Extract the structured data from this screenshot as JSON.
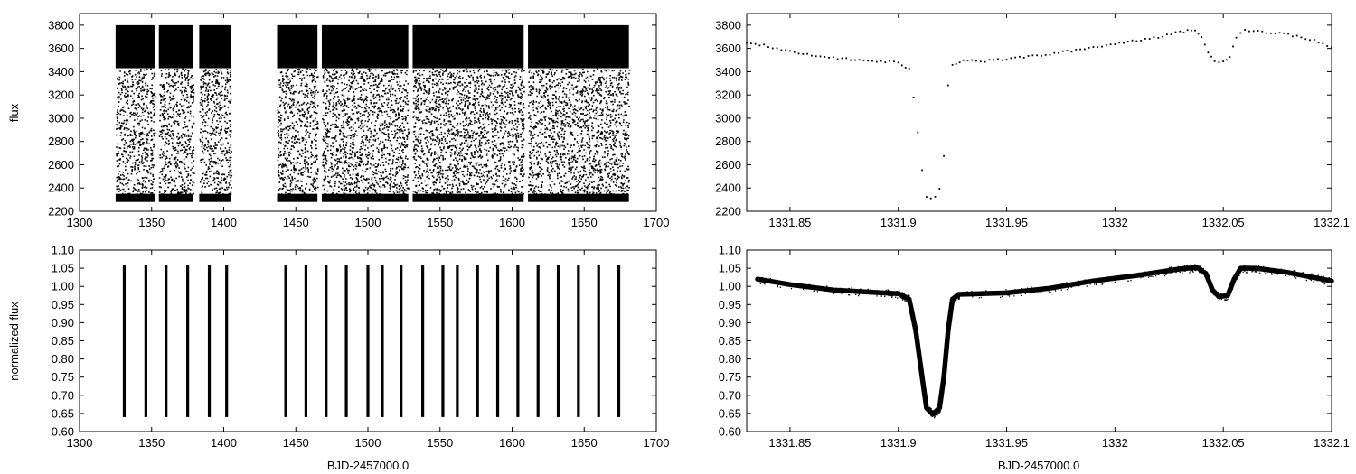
{
  "figure": {
    "ylabels": {
      "flux": "flux",
      "normalized": "normalized flux"
    },
    "xlabel": "BJD-2457000.0"
  },
  "chart_data": [
    {
      "id": "raw-full",
      "type": "scatter",
      "title": "",
      "xlabel": "",
      "ylabel": "flux",
      "xlim": [
        1300,
        1700
      ],
      "ylim": [
        2200,
        3900
      ],
      "xticks": [
        1300,
        1350,
        1400,
        1450,
        1500,
        1550,
        1600,
        1650,
        1700
      ],
      "xtick_labels": [
        "1300",
        "1350",
        "1400",
        "1450",
        "1500",
        "1550",
        "1600",
        "1650",
        "1700"
      ],
      "yticks": [
        2200,
        2400,
        2600,
        2800,
        3000,
        3200,
        3400,
        3600,
        3800
      ],
      "ytick_labels": [
        "2200",
        "2400",
        "2600",
        "2800",
        "3000",
        "3200",
        "3400",
        "3600",
        "3800"
      ],
      "grid": false,
      "data_segments": [
        [
          1325,
          1352
        ],
        [
          1355,
          1379
        ],
        [
          1383,
          1405
        ],
        [
          1437,
          1465
        ],
        [
          1468,
          1528
        ],
        [
          1531,
          1608
        ],
        [
          1611,
          1681
        ]
      ],
      "flux_band": [
        3430,
        3800
      ],
      "eclipse_floor": [
        2280,
        2350
      ],
      "period_days": 14.4,
      "eclipse_center_days": 1331.915
    },
    {
      "id": "raw-zoom",
      "type": "scatter",
      "title": "",
      "xlabel": "",
      "ylabel": "",
      "xlim": [
        1331.83,
        1332.1
      ],
      "ylim": [
        2200,
        3900
      ],
      "xticks": [
        1331.85,
        1331.9,
        1331.95,
        1332.0,
        1332.05,
        1332.1
      ],
      "xtick_labels": [
        "1331.85",
        "1331.9",
        "1331.95",
        "1332",
        "1332.05",
        "1332.1"
      ],
      "yticks": [
        2200,
        2400,
        2600,
        2800,
        3000,
        3200,
        3400,
        3600,
        3800
      ],
      "ytick_labels": [
        "2200",
        "2400",
        "2600",
        "2800",
        "3000",
        "3200",
        "3400",
        "3600",
        "3800"
      ],
      "grid": false,
      "points": [
        [
          1331.83,
          3650
        ],
        [
          1331.84,
          3620
        ],
        [
          1331.85,
          3570
        ],
        [
          1331.86,
          3540
        ],
        [
          1331.87,
          3520
        ],
        [
          1331.88,
          3500
        ],
        [
          1331.89,
          3490
        ],
        [
          1331.9,
          3480
        ],
        [
          1331.905,
          3420
        ],
        [
          1331.907,
          3180
        ],
        [
          1331.909,
          2870
        ],
        [
          1331.911,
          2550
        ],
        [
          1331.913,
          2330
        ],
        [
          1331.915,
          2315
        ],
        [
          1331.917,
          2330
        ],
        [
          1331.919,
          2390
        ],
        [
          1331.921,
          2680
        ],
        [
          1331.923,
          3290
        ],
        [
          1331.925,
          3460
        ],
        [
          1331.93,
          3500
        ],
        [
          1331.94,
          3490
        ],
        [
          1331.95,
          3510
        ],
        [
          1331.96,
          3530
        ],
        [
          1331.97,
          3550
        ],
        [
          1331.98,
          3580
        ],
        [
          1331.99,
          3610
        ],
        [
          1332.0,
          3640
        ],
        [
          1332.01,
          3670
        ],
        [
          1332.02,
          3700
        ],
        [
          1332.03,
          3740
        ],
        [
          1332.037,
          3760
        ],
        [
          1332.04,
          3700
        ],
        [
          1332.043,
          3560
        ],
        [
          1332.046,
          3490
        ],
        [
          1332.05,
          3490
        ],
        [
          1332.053,
          3530
        ],
        [
          1332.056,
          3700
        ],
        [
          1332.06,
          3760
        ],
        [
          1332.07,
          3740
        ],
        [
          1332.08,
          3720
        ],
        [
          1332.09,
          3680
        ],
        [
          1332.1,
          3610
        ]
      ]
    },
    {
      "id": "norm-full",
      "type": "scatter",
      "title": "",
      "xlabel": "BJD-2457000.0",
      "ylabel": "normalized flux",
      "xlim": [
        1300,
        1700
      ],
      "ylim": [
        0.6,
        1.1
      ],
      "xticks": [
        1300,
        1350,
        1400,
        1450,
        1500,
        1550,
        1600,
        1650,
        1700
      ],
      "xtick_labels": [
        "1300",
        "1350",
        "1400",
        "1450",
        "1500",
        "1550",
        "1600",
        "1650",
        "1700"
      ],
      "yticks": [
        0.6,
        0.65,
        0.7,
        0.75,
        0.8,
        0.85,
        0.9,
        0.95,
        1.0,
        1.05,
        1.1
      ],
      "ytick_labels": [
        "0.60",
        "0.65",
        "0.70",
        "0.75",
        "0.80",
        "0.85",
        "0.90",
        "0.95",
        "1.00",
        "1.05",
        "1.10"
      ],
      "grid": false,
      "stripe_x": [
        1331,
        1346,
        1360,
        1375,
        1390,
        1402,
        1443,
        1457,
        1471,
        1485,
        1500,
        1510,
        1523,
        1538,
        1552,
        1562,
        1576,
        1590,
        1604,
        1618,
        1632,
        1646,
        1660,
        1674
      ],
      "stripe_range": [
        0.64,
        1.06
      ]
    },
    {
      "id": "norm-zoom",
      "type": "line",
      "title": "",
      "xlabel": "BJD-2457000.0",
      "ylabel": "",
      "xlim": [
        1331.83,
        1332.1
      ],
      "ylim": [
        0.6,
        1.1
      ],
      "xticks": [
        1331.85,
        1331.9,
        1331.95,
        1332.0,
        1332.05,
        1332.1
      ],
      "xtick_labels": [
        "1331.85",
        "1331.9",
        "1331.95",
        "1332",
        "1332.05",
        "1332.1"
      ],
      "yticks": [
        0.6,
        0.65,
        0.7,
        0.75,
        0.8,
        0.85,
        0.9,
        0.95,
        1.0,
        1.05,
        1.1
      ],
      "ytick_labels": [
        "0.60",
        "0.65",
        "0.70",
        "0.75",
        "0.80",
        "0.85",
        "0.90",
        "0.95",
        "1.00",
        "1.05",
        "1.10"
      ],
      "grid": false,
      "points": [
        [
          1331.835,
          1.02
        ],
        [
          1331.85,
          1.005
        ],
        [
          1331.87,
          0.99
        ],
        [
          1331.89,
          0.983
        ],
        [
          1331.9,
          0.98
        ],
        [
          1331.905,
          0.965
        ],
        [
          1331.908,
          0.88
        ],
        [
          1331.911,
          0.75
        ],
        [
          1331.913,
          0.665
        ],
        [
          1331.916,
          0.648
        ],
        [
          1331.919,
          0.665
        ],
        [
          1331.921,
          0.75
        ],
        [
          1331.923,
          0.88
        ],
        [
          1331.925,
          0.965
        ],
        [
          1331.928,
          0.978
        ],
        [
          1331.95,
          0.982
        ],
        [
          1331.97,
          0.995
        ],
        [
          1331.99,
          1.015
        ],
        [
          1332.01,
          1.03
        ],
        [
          1332.03,
          1.048
        ],
        [
          1332.038,
          1.052
        ],
        [
          1332.042,
          1.035
        ],
        [
          1332.045,
          0.99
        ],
        [
          1332.048,
          0.972
        ],
        [
          1332.052,
          0.975
        ],
        [
          1332.055,
          1.02
        ],
        [
          1332.058,
          1.05
        ],
        [
          1332.065,
          1.05
        ],
        [
          1332.08,
          1.038
        ],
        [
          1332.1,
          1.015
        ]
      ]
    }
  ]
}
